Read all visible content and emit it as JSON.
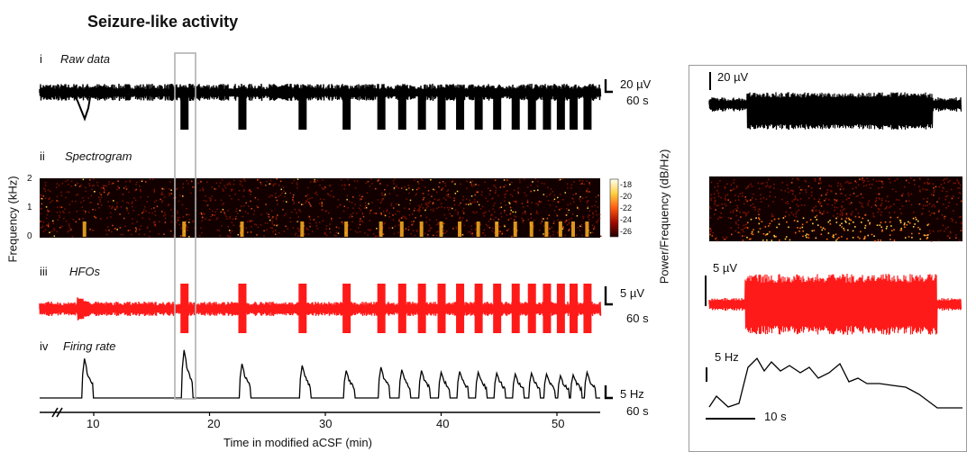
{
  "figure": {
    "title": "Seizure-like activity",
    "panels": [
      {
        "roman": "i",
        "name": "Raw data"
      },
      {
        "roman": "ii",
        "name": "Spectrogram"
      },
      {
        "roman": "iii",
        "name": "HFOs"
      },
      {
        "roman": "iv",
        "name": "Firing rate"
      }
    ],
    "spectrogram": {
      "y_axis_label": "Frequency (kHz)",
      "y_ticks": [
        "2",
        "1",
        "0"
      ],
      "colorbar_label": "Power/Frequency (dB/Hz)",
      "colorbar_ticks": [
        "-18",
        "-20",
        "-22",
        "-24",
        "-26"
      ]
    },
    "scale_bars": {
      "raw_amplitude": "20 µV",
      "raw_time": "60 s",
      "hfo_amplitude": "5 µV",
      "hfo_time": "60 s",
      "rate": "5 Hz",
      "rate_time": "60 s"
    },
    "x_axis": {
      "label": "Time in modified aCSF (min)",
      "ticks": [
        "10",
        "20",
        "30",
        "40",
        "50"
      ]
    },
    "inset": {
      "raw_scale": "20 µV",
      "hfo_scale": "5 µV",
      "rate_scale": "5 Hz",
      "time_scale": "10 s"
    },
    "colors": {
      "raw": "#000000",
      "hfo": "#ff1a1a",
      "spectrogram_bg": "#120000",
      "highlight_box": "#b0b0b0",
      "inset_border": "#9a9a9a"
    },
    "event_minutes": [
      9.2,
      17.8,
      22.8,
      28.0,
      31.8,
      34.8,
      36.6,
      38.3,
      40.0,
      41.6,
      43.2,
      44.8,
      46.4,
      47.8,
      49.1,
      50.3,
      51.4,
      52.6
    ],
    "firing_rate_peaks_hz": [
      4.6,
      5.6,
      4.0,
      3.8,
      3.2,
      3.6,
      3.3,
      3.2,
      3.0,
      3.1,
      3.0,
      2.9,
      2.8,
      2.9,
      2.8,
      2.6,
      2.7,
      3.0
    ]
  }
}
